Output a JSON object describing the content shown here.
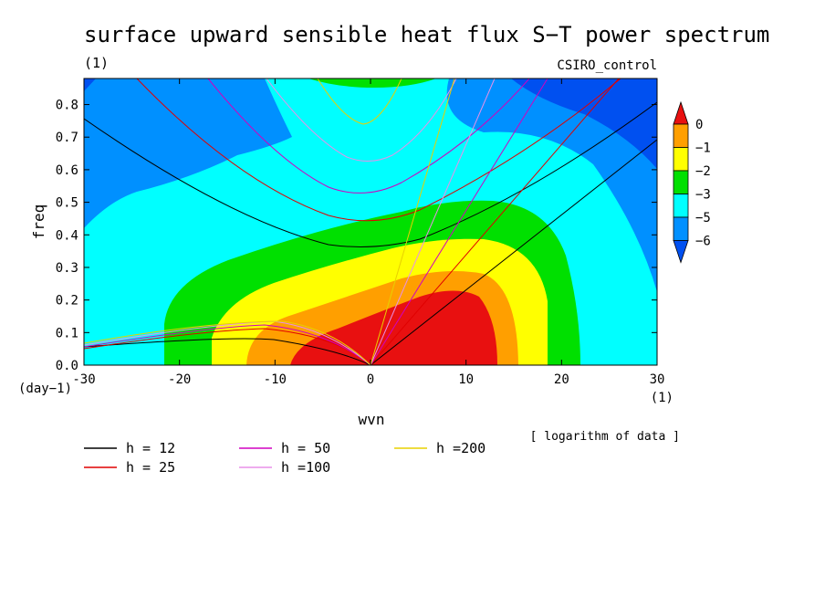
{
  "chart_data": {
    "type": "heatmap",
    "title": "surface upward sensible heat flux S−T power spectrum",
    "subtitle_left": "(1)",
    "subtitle_right": "CSIRO_control",
    "xlabel": "wvn",
    "ylabel": "freq",
    "x_unit": "(1)",
    "y_unit": "(day−1)",
    "note": "[ logarithm of data ]",
    "xlim": [
      -30,
      30
    ],
    "ylim": [
      0,
      0.88
    ],
    "x_ticks": [
      -30,
      -20,
      -10,
      0,
      10,
      20,
      30
    ],
    "y_ticks": [
      0.0,
      0.1,
      0.2,
      0.3,
      0.4,
      0.5,
      0.6,
      0.7,
      0.8
    ],
    "y_tick_labels": [
      "0.0",
      "0.1",
      "0.2",
      "0.3",
      "0.4",
      "0.5",
      "0.6",
      "0.7",
      "0.8"
    ],
    "colorbar": {
      "labels": [
        "0",
        "−1",
        "−2",
        "−3",
        "−5",
        "−6"
      ],
      "colors": [
        "#e81010",
        "#ff9f00",
        "#ffff00",
        "#00e000",
        "#00ffff",
        "#0090ff",
        "#0050f0"
      ]
    },
    "dispersion_curves": [
      {
        "name": "h = 12",
        "color": "#000000"
      },
      {
        "name": "h = 25",
        "color": "#e00000"
      },
      {
        "name": "h = 50",
        "color": "#d000c0"
      },
      {
        "name": "h =100",
        "color": "#e890e8"
      },
      {
        "name": "h =200",
        "color": "#e8d000"
      }
    ]
  }
}
